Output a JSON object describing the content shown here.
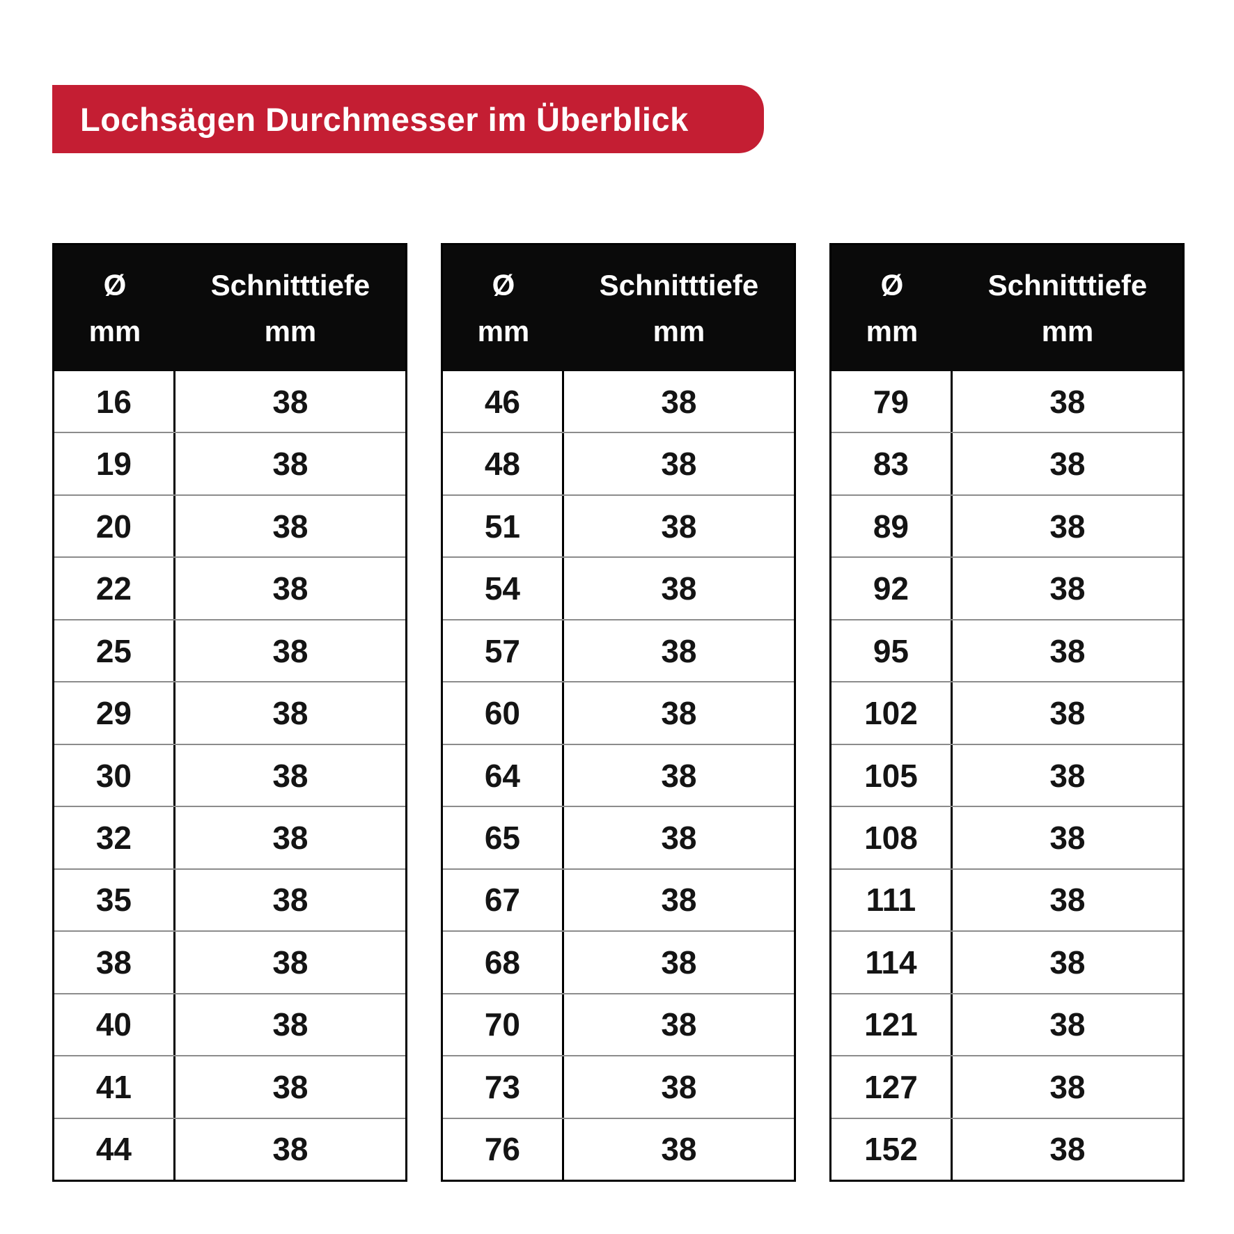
{
  "banner": {
    "label": "Lochsägen Durchmesser im Überblick",
    "background": "#C41E33",
    "text_color": "#FFFFFF"
  },
  "table_header": {
    "diameter_symbol": "Ø",
    "diameter_unit": "mm",
    "depth_label": "Schnitttiefe",
    "depth_unit": "mm"
  },
  "style": {
    "header_background": "#0A0A0A",
    "row_divider_color": "#8C8C8C",
    "table_border_color": "#000000",
    "page_background": "#FFFFFF"
  },
  "chart_data": {
    "type": "table",
    "title": "Lochsägen Durchmesser im Überblick",
    "columns": [
      "Ø mm",
      "Schnitttiefe mm"
    ],
    "tables": [
      {
        "rows": [
          [
            16,
            38
          ],
          [
            19,
            38
          ],
          [
            20,
            38
          ],
          [
            22,
            38
          ],
          [
            25,
            38
          ],
          [
            29,
            38
          ],
          [
            30,
            38
          ],
          [
            32,
            38
          ],
          [
            35,
            38
          ],
          [
            38,
            38
          ],
          [
            40,
            38
          ],
          [
            41,
            38
          ],
          [
            44,
            38
          ]
        ]
      },
      {
        "rows": [
          [
            46,
            38
          ],
          [
            48,
            38
          ],
          [
            51,
            38
          ],
          [
            54,
            38
          ],
          [
            57,
            38
          ],
          [
            60,
            38
          ],
          [
            64,
            38
          ],
          [
            65,
            38
          ],
          [
            67,
            38
          ],
          [
            68,
            38
          ],
          [
            70,
            38
          ],
          [
            73,
            38
          ],
          [
            76,
            38
          ]
        ]
      },
      {
        "rows": [
          [
            79,
            38
          ],
          [
            83,
            38
          ],
          [
            89,
            38
          ],
          [
            92,
            38
          ],
          [
            95,
            38
          ],
          [
            102,
            38
          ],
          [
            105,
            38
          ],
          [
            108,
            38
          ],
          [
            111,
            38
          ],
          [
            114,
            38
          ],
          [
            121,
            38
          ],
          [
            127,
            38
          ],
          [
            152,
            38
          ]
        ]
      }
    ]
  }
}
